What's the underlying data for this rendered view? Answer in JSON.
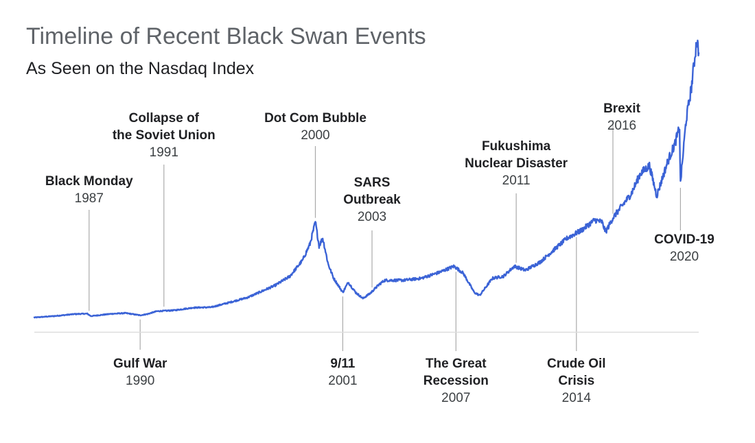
{
  "title": "Timeline of Recent Black Swan Events",
  "subtitle": "As Seen on the Nasdaq Index",
  "colors": {
    "line": "#3b63d6",
    "leader": "#aaaaaa",
    "baseline": "#dddddd"
  },
  "chart_data": {
    "type": "line",
    "title": "Timeline of Recent Black Swan Events",
    "subtitle": "As Seen on the Nasdaq Index",
    "xlabel": "",
    "ylabel": "",
    "xlim": [
      1984.8,
      2021.2
    ],
    "ylim": [
      -500,
      14500
    ],
    "grid": false,
    "series": [
      {
        "values": [
          [
            1984.8,
            250
          ],
          [
            1986.0,
            330
          ],
          [
            1987.0,
            420
          ],
          [
            1987.7,
            440
          ],
          [
            1987.9,
            320
          ],
          [
            1989.0,
            430
          ],
          [
            1989.8,
            470
          ],
          [
            1990.6,
            360
          ],
          [
            1991.0,
            420
          ],
          [
            1991.5,
            560
          ],
          [
            1992.5,
            610
          ],
          [
            1993.5,
            740
          ],
          [
            1994.5,
            760
          ],
          [
            1995.5,
            1000
          ],
          [
            1996.5,
            1250
          ],
          [
            1997.5,
            1650
          ],
          [
            1998.0,
            1850
          ],
          [
            1998.8,
            2300
          ],
          [
            1999.5,
            3100
          ],
          [
            1999.9,
            3900
          ],
          [
            2000.2,
            5000
          ],
          [
            2000.4,
            3800
          ],
          [
            2000.6,
            4200
          ],
          [
            2000.9,
            2900
          ],
          [
            2001.2,
            2200
          ],
          [
            2001.7,
            1500
          ],
          [
            2002.0,
            2000
          ],
          [
            2002.4,
            1500
          ],
          [
            2002.8,
            1200
          ],
          [
            2003.2,
            1450
          ],
          [
            2003.7,
            1900
          ],
          [
            2004.0,
            2100
          ],
          [
            2005.0,
            2100
          ],
          [
            2006.0,
            2200
          ],
          [
            2007.0,
            2500
          ],
          [
            2007.8,
            2800
          ],
          [
            2008.3,
            2450
          ],
          [
            2008.9,
            1500
          ],
          [
            2009.2,
            1350
          ],
          [
            2009.9,
            2200
          ],
          [
            2010.5,
            2300
          ],
          [
            2011.1,
            2800
          ],
          [
            2011.7,
            2600
          ],
          [
            2012.5,
            3000
          ],
          [
            2013.5,
            3800
          ],
          [
            2014.0,
            4200
          ],
          [
            2014.8,
            4600
          ],
          [
            2015.5,
            5100
          ],
          [
            2015.9,
            5000
          ],
          [
            2016.1,
            4500
          ],
          [
            2016.5,
            5200
          ],
          [
            2017.5,
            6400
          ],
          [
            2018.0,
            7400
          ],
          [
            2018.5,
            7800
          ],
          [
            2018.9,
            6300
          ],
          [
            2019.5,
            8000
          ],
          [
            2019.9,
            8900
          ],
          [
            2020.15,
            9700
          ],
          [
            2020.2,
            6900
          ],
          [
            2020.5,
            10000
          ],
          [
            2020.8,
            11700
          ],
          [
            2021.1,
            14100
          ],
          [
            2021.2,
            13400
          ]
        ]
      }
    ],
    "annotations": [
      {
        "id": "black-monday",
        "lines": [
          "Black Monday"
        ],
        "year": "1987",
        "date": 1987.8,
        "side": "above"
      },
      {
        "id": "gulf-war",
        "lines": [
          "Gulf War"
        ],
        "year": "1990",
        "date": 1990.6,
        "side": "below"
      },
      {
        "id": "soviet-collapse",
        "lines": [
          "Collapse of",
          "the Soviet Union"
        ],
        "year": "1991",
        "date": 1991.9,
        "side": "above"
      },
      {
        "id": "dot-com-bubble",
        "lines": [
          "Dot Com Bubble"
        ],
        "year": "2000",
        "date": 2000.2,
        "side": "above"
      },
      {
        "id": "sept-11",
        "lines": [
          "9/11"
        ],
        "year": "2001",
        "date": 2001.7,
        "side": "below"
      },
      {
        "id": "sars-outbreak",
        "lines": [
          "SARS",
          "Outbreak"
        ],
        "year": "2003",
        "date": 2003.3,
        "side": "above"
      },
      {
        "id": "great-recession",
        "lines": [
          "The Great",
          "Recession"
        ],
        "year": "2007",
        "date": 2007.9,
        "side": "below"
      },
      {
        "id": "fukushima",
        "lines": [
          "Fukushima",
          "Nuclear Disaster"
        ],
        "year": "2011",
        "date": 2011.2,
        "side": "above"
      },
      {
        "id": "crude-oil-crisis",
        "lines": [
          "Crude Oil",
          "Crisis"
        ],
        "year": "2014",
        "date": 2014.5,
        "side": "below"
      },
      {
        "id": "brexit",
        "lines": [
          "Brexit"
        ],
        "year": "2016",
        "date": 2016.5,
        "side": "above"
      },
      {
        "id": "covid-19",
        "lines": [
          "COVID-19"
        ],
        "year": "2020",
        "date": 2020.2,
        "side": "below"
      }
    ]
  }
}
